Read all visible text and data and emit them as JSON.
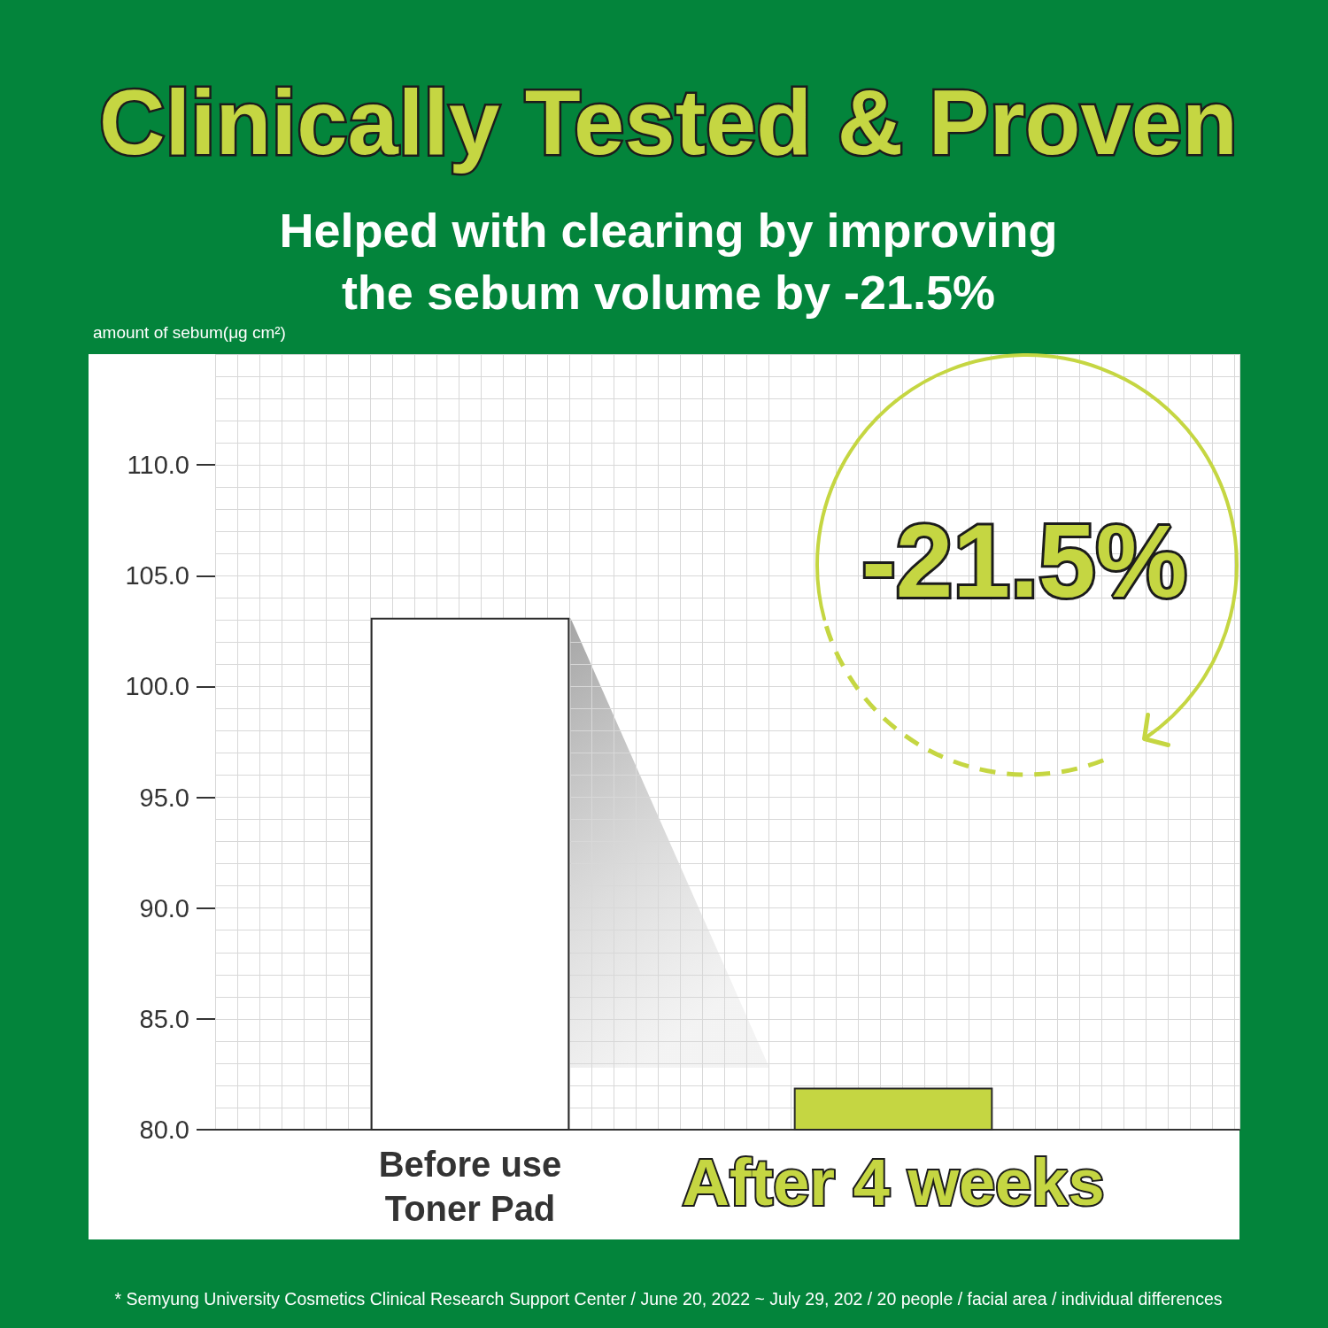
{
  "chart_data": {
    "type": "bar",
    "title": "Clinically Tested & Proven",
    "subtitle": "Helped with clearing by improving the sebum volume by -21.5%",
    "ylabel": "amount of sebum(μg cm²)",
    "categories": [
      "Before use Toner Pad",
      "After 4 weeks"
    ],
    "values": [
      103.1,
      81.9
    ],
    "colors": [
      "#ffffff",
      "#c5d642"
    ],
    "ylim": [
      80,
      115
    ],
    "yticks": [
      {
        "value": 80,
        "label": "80.0"
      },
      {
        "value": 85,
        "label": "85.0"
      },
      {
        "value": 90,
        "label": "90.0"
      },
      {
        "value": 95,
        "label": "95.0"
      },
      {
        "value": 100,
        "label": "100.0"
      },
      {
        "value": 105,
        "label": "105.0"
      },
      {
        "value": 110,
        "label": "110.0"
      }
    ],
    "grid": true,
    "annotations": [
      "-21.5%",
      "* Semyung University Cosmetics Clinical Research Support Center / June 20, 2022 ~ July 29, 202 / 20 people / facial area / individual differences"
    ]
  }
}
